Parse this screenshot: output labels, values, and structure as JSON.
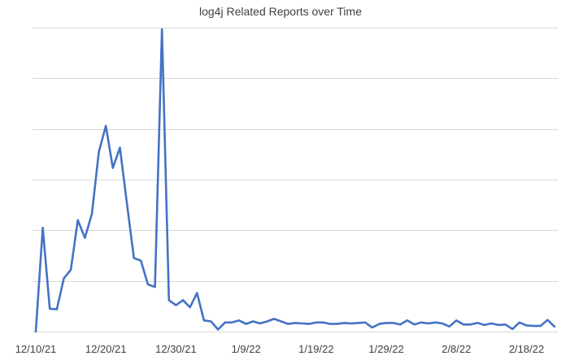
{
  "chart_data": {
    "type": "line",
    "title": "log4j Related Reports over Time",
    "xlabel": "",
    "ylabel": "",
    "x_tick_labels": [
      "12/10/21",
      "12/20/21",
      "12/30/21",
      "1/9/22",
      "1/19/22",
      "1/29/22",
      "2/8/22",
      "2/18/22"
    ],
    "x_tick_day_index": [
      0,
      10,
      20,
      30,
      40,
      50,
      60,
      70
    ],
    "ylim": [
      0,
      6
    ],
    "y_gridlines": [
      1,
      2,
      3,
      4,
      5,
      6
    ],
    "y_tick_labels_shown": false,
    "grid": "horizontal",
    "legend": "none",
    "series": [
      {
        "color": "#4472C4",
        "x_day_index": [
          0,
          1,
          2,
          3,
          4,
          5,
          6,
          7,
          8,
          9,
          10,
          11,
          12,
          13,
          14,
          15,
          16,
          17,
          18,
          19,
          20,
          21,
          22,
          23,
          24,
          25,
          26,
          27,
          28,
          29,
          30,
          31,
          32,
          33,
          34,
          35,
          36,
          37,
          38,
          39,
          40,
          41,
          42,
          43,
          44,
          45,
          46,
          47,
          48,
          49,
          50,
          51,
          52,
          53,
          54,
          55,
          56,
          57,
          58,
          59,
          60,
          61,
          62,
          63,
          64,
          65,
          66,
          67,
          68,
          69,
          70,
          71,
          72,
          73,
          74
        ],
        "values": [
          0.0,
          2.05,
          0.45,
          0.44,
          1.05,
          1.22,
          2.2,
          1.85,
          2.32,
          3.55,
          4.06,
          3.23,
          3.63,
          2.53,
          1.45,
          1.4,
          0.93,
          0.88,
          5.97,
          0.62,
          0.52,
          0.62,
          0.48,
          0.76,
          0.22,
          0.2,
          0.04,
          0.18,
          0.18,
          0.22,
          0.15,
          0.2,
          0.16,
          0.2,
          0.25,
          0.2,
          0.15,
          0.17,
          0.16,
          0.15,
          0.18,
          0.18,
          0.15,
          0.15,
          0.17,
          0.16,
          0.17,
          0.18,
          0.08,
          0.15,
          0.17,
          0.17,
          0.14,
          0.22,
          0.14,
          0.18,
          0.16,
          0.18,
          0.16,
          0.1,
          0.22,
          0.14,
          0.14,
          0.17,
          0.13,
          0.16,
          0.13,
          0.14,
          0.05,
          0.18,
          0.12,
          0.11,
          0.11,
          0.23,
          0.1
        ]
      }
    ]
  }
}
